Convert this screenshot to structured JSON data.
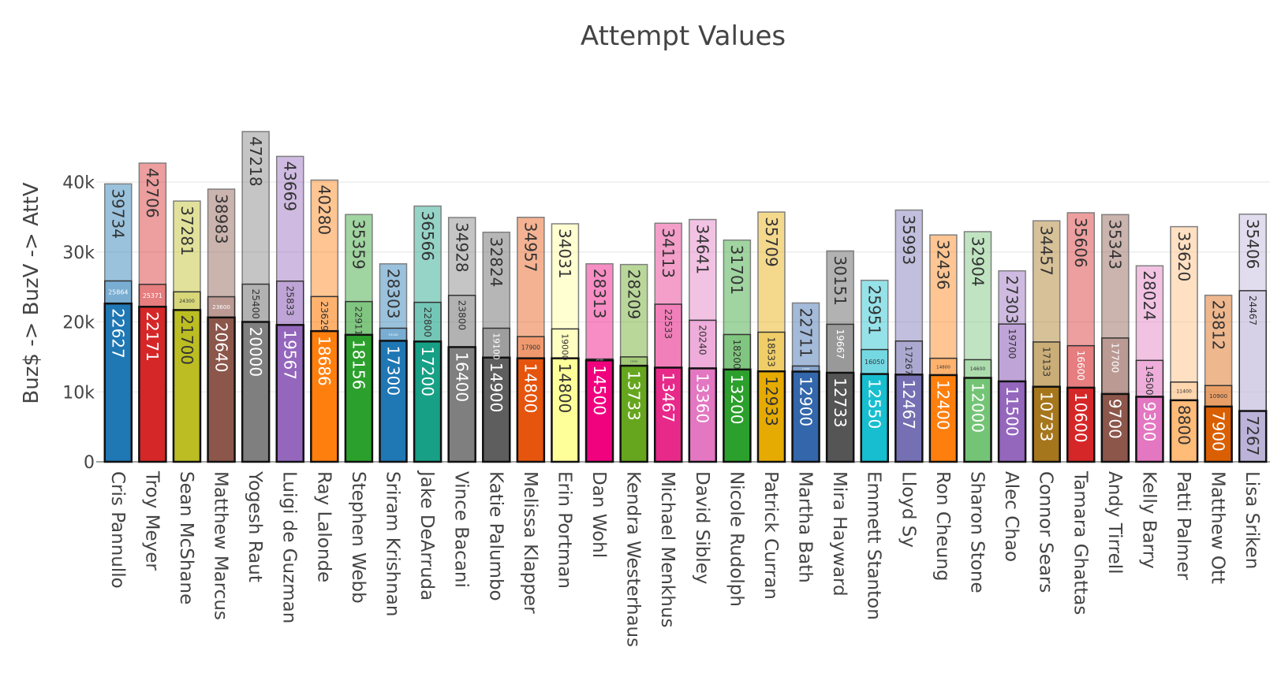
{
  "chart_data": {
    "type": "bar",
    "mode": "overlay",
    "title": "Attempt Values",
    "xlabel": "",
    "ylabel": "Buz$ -> BuzV -> AttV",
    "ylim": [
      0,
      48000
    ],
    "yticks": [
      0,
      10000,
      20000,
      30000,
      40000
    ],
    "ytick_labels": [
      "0",
      "10k",
      "20k",
      "30k",
      "40k"
    ],
    "grid": true,
    "legend": "none",
    "categories": [
      "Cris Pannullo",
      "Troy Meyer",
      "Sean McShane",
      "Matthew Marcus",
      "Yogesh Raut",
      "Luigi de Guzman",
      "Ray Lalonde",
      "Stephen Webb",
      "Sriram Krishnan",
      "Jake DeArruda",
      "Vince Bacani",
      "Katie Palumbo",
      "Melissa Klapper",
      "Erin Portman",
      "Dan Wohl",
      "Kendra Westerhaus",
      "Michael Menkhus",
      "David Sibley",
      "Nicole Rudolph",
      "Patrick Curran",
      "Martha Bath",
      "Mira Hayward",
      "Emmett Stanton",
      "Lloyd Sy",
      "Ron Cheung",
      "Sharon Stone",
      "Alec Chao",
      "Connor Sears",
      "Tamara  Ghattas",
      "Andy Tirrell",
      "Kelly Barry",
      "Patti Palmer",
      "Matthew Ott",
      "Lisa Sriken"
    ],
    "colors": [
      "#1f77b4",
      "#d62728",
      "#bcbd22",
      "#8c564b",
      "#7f7f7f",
      "#9467bd",
      "#ff7f0e",
      "#2ca02c",
      "#1f77b4",
      "#17a085",
      "#7f7f7f",
      "#5e5e5e",
      "#e6550d",
      "#ffff99",
      "#f0027f",
      "#66a61e",
      "#e7298a",
      "#e377c2",
      "#2ca02c",
      "#e6ab02",
      "#3366aa",
      "#555555",
      "#17becf",
      "#7570b3",
      "#ff7f0e",
      "#74c476",
      "#9467bd",
      "#a6761d",
      "#d62728",
      "#8c564b",
      "#e377c2",
      "#ffbb78",
      "#d95f02",
      "#bcb3d9"
    ],
    "series": [
      {
        "name": "",
        "values": [
          39734,
          42706,
          37281,
          38983,
          47218,
          43669,
          40280,
          35359,
          28303,
          36566,
          34928,
          32824,
          34957,
          34031,
          28313,
          28209,
          34113,
          34641,
          31701,
          35709,
          22711,
          30151,
          25951,
          35993,
          32436,
          32904,
          27303,
          34457,
          35606,
          35343,
          28024,
          33620,
          23812,
          35406
        ]
      },
      {
        "name": "",
        "values": [
          25864,
          25371,
          24300,
          23600,
          25400,
          25833,
          23629,
          22911,
          19100,
          22800,
          23800,
          19100,
          17900,
          19000,
          14700,
          15000,
          22533,
          20240,
          18200,
          18533,
          13700,
          19667,
          16050,
          17267,
          14800,
          14600,
          19700,
          17133,
          16600,
          17700,
          14500,
          11400,
          10900,
          24467
        ]
      },
      {
        "name": "",
        "values": [
          22627,
          22171,
          21700,
          20640,
          20000,
          19567,
          18686,
          18156,
          17300,
          17200,
          16400,
          14900,
          14800,
          14800,
          14500,
          13733,
          13467,
          13360,
          13200,
          12933,
          12900,
          12733,
          12550,
          12467,
          12400,
          12000,
          11500,
          10733,
          10600,
          9700,
          9300,
          8800,
          7900,
          7267
        ]
      }
    ]
  }
}
